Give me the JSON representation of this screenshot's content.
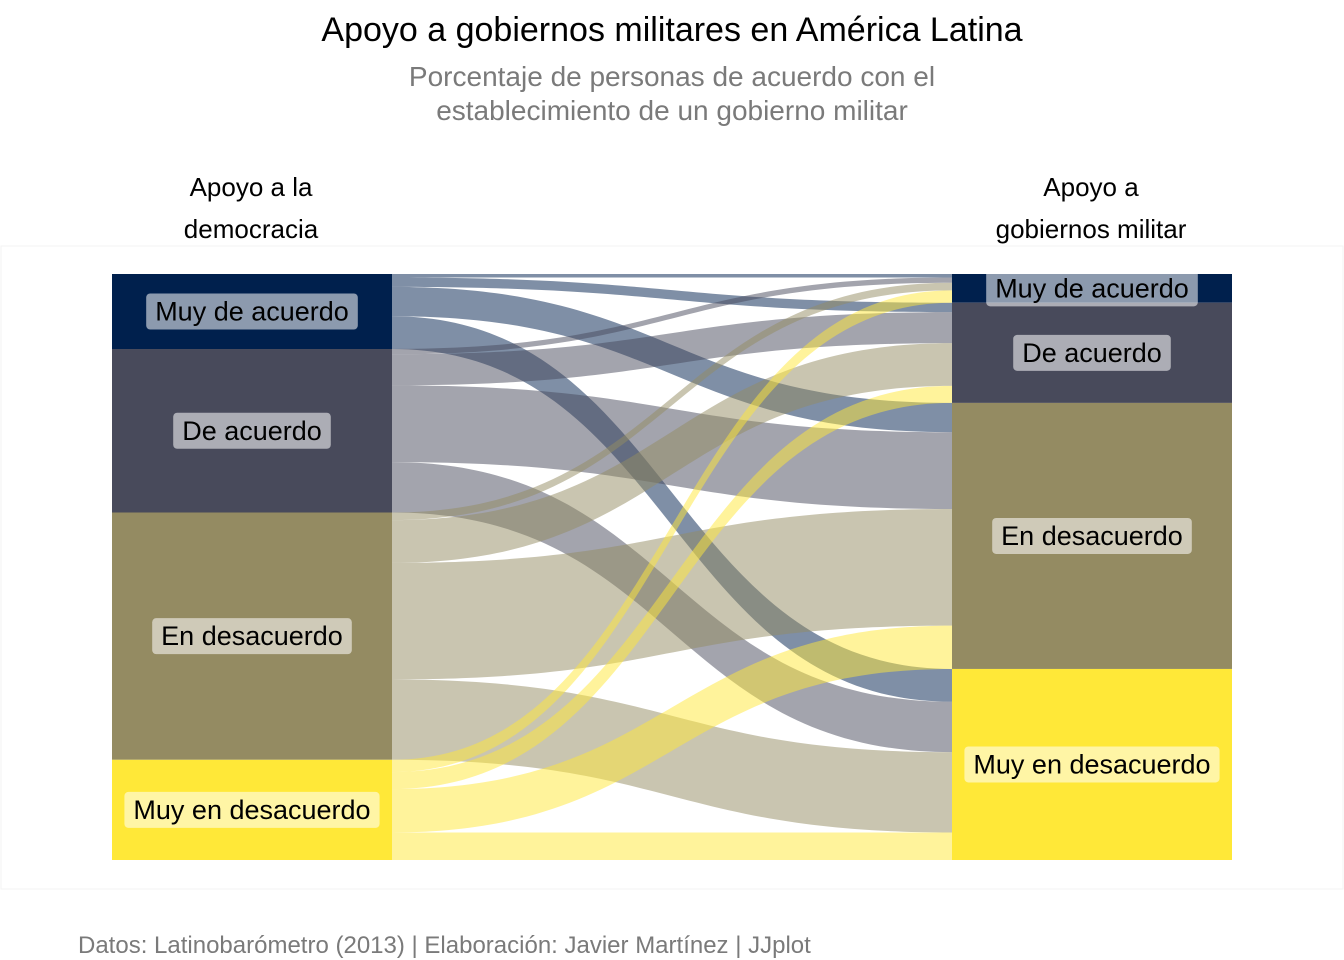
{
  "chart_data": {
    "type": "sankey",
    "title": "Apoyo a gobiernos militares en América Latina",
    "subtitle_lines": [
      "Porcentaje de personas de acuerdo con el",
      "establecimiento de un gobierno militar"
    ],
    "caption": "Datos: Latinobarómetro (2013) | Elaboración: Javier Martínez | JJplot",
    "axis_titles": {
      "left": [
        "Apoyo a la",
        "democracia"
      ],
      "right": [
        "Apoyo a",
        "gobiernos militar"
      ]
    },
    "categories": [
      "Muy de acuerdo",
      "De acuerdo",
      "En desacuerdo",
      "Muy en desacuerdo"
    ],
    "colors": {
      "Muy de acuerdo": "#00204d",
      "De acuerdo": "#484a5b",
      "En desacuerdo": "#948b62",
      "Muy en desacuerdo": "#ffe838"
    },
    "left_totals": [
      12.8,
      27.9,
      42.2,
      17.1
    ],
    "right_totals": [
      4.9,
      17.1,
      45.4,
      32.6
    ],
    "flows": [
      {
        "from": "Muy de acuerdo",
        "to": "Muy de acuerdo",
        "value": 0.6
      },
      {
        "from": "Muy de acuerdo",
        "to": "De acuerdo",
        "value": 1.6
      },
      {
        "from": "Muy de acuerdo",
        "to": "En desacuerdo",
        "value": 5.0
      },
      {
        "from": "Muy de acuerdo",
        "to": "Muy en desacuerdo",
        "value": 5.6
      },
      {
        "from": "De acuerdo",
        "to": "Muy de acuerdo",
        "value": 0.9
      },
      {
        "from": "De acuerdo",
        "to": "De acuerdo",
        "value": 5.3
      },
      {
        "from": "De acuerdo",
        "to": "En desacuerdo",
        "value": 13.1
      },
      {
        "from": "De acuerdo",
        "to": "Muy en desacuerdo",
        "value": 8.6
      },
      {
        "from": "En desacuerdo",
        "to": "Muy de acuerdo",
        "value": 1.3
      },
      {
        "from": "En desacuerdo",
        "to": "De acuerdo",
        "value": 7.3
      },
      {
        "from": "En desacuerdo",
        "to": "En desacuerdo",
        "value": 19.9
      },
      {
        "from": "En desacuerdo",
        "to": "Muy en desacuerdo",
        "value": 13.7
      },
      {
        "from": "Muy en desacuerdo",
        "to": "Muy de acuerdo",
        "value": 2.1
      },
      {
        "from": "Muy en desacuerdo",
        "to": "De acuerdo",
        "value": 2.9
      },
      {
        "from": "Muy en desacuerdo",
        "to": "En desacuerdo",
        "value": 7.4
      },
      {
        "from": "Muy en desacuerdo",
        "to": "Muy en desacuerdo",
        "value": 4.7
      }
    ]
  }
}
